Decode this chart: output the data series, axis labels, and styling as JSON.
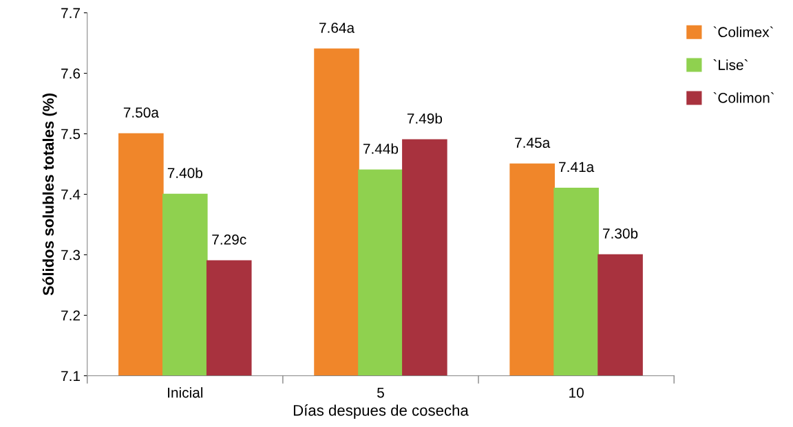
{
  "chart_data": {
    "type": "bar",
    "xlabel": "Días despues de cosecha",
    "ylabel": "Sólidos solubles totales (%)",
    "categories": [
      "Inicial",
      "5",
      "10"
    ],
    "series": [
      {
        "name": "`Colimex`",
        "color": "#f0862a",
        "values": [
          7.5,
          7.64,
          7.45
        ],
        "value_labels": [
          "7.50a",
          "7.64a",
          "7.45a"
        ]
      },
      {
        "name": "`Lise`",
        "color": "#8fd14f",
        "values": [
          7.4,
          7.44,
          7.41
        ],
        "value_labels": [
          "7.40b",
          "7.44b",
          "7.41a"
        ]
      },
      {
        "name": "`Colimon`",
        "color": "#a8323e",
        "values": [
          7.29,
          7.49,
          7.3
        ],
        "value_labels": [
          "7.29c",
          "7.49b",
          "7.30b"
        ]
      }
    ],
    "ylim": [
      7.1,
      7.7
    ],
    "yticks": [
      7.1,
      7.2,
      7.3,
      7.4,
      7.5,
      7.6,
      7.7
    ],
    "grid": false,
    "legend": "top right"
  }
}
